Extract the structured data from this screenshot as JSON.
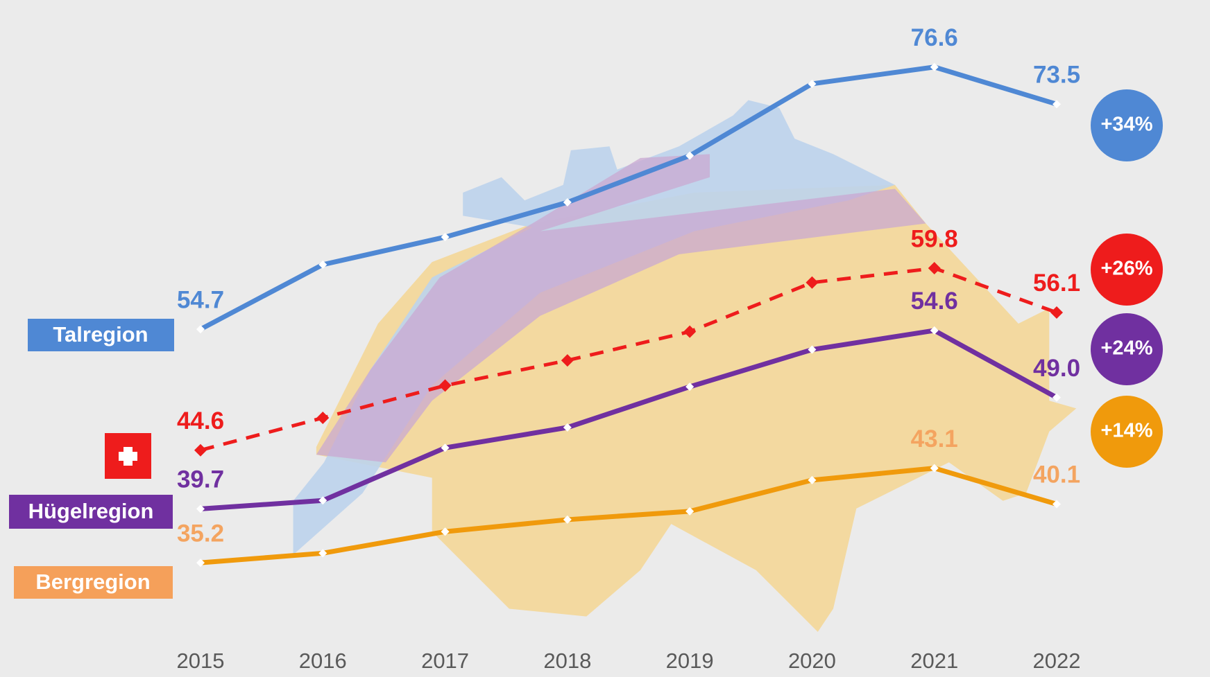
{
  "chart_data": {
    "type": "line",
    "categories": [
      "2015",
      "2016",
      "2017",
      "2018",
      "2019",
      "2020",
      "2021",
      "2022"
    ],
    "ylim": [
      30,
      80
    ],
    "series": [
      {
        "name": "Talregion",
        "color": "#4f88d4",
        "label_color": "#4f88d4",
        "dashed": false,
        "change": "+34%",
        "values": [
          54.7,
          60.1,
          62.4,
          65.3,
          69.2,
          75.2,
          76.6,
          73.5
        ],
        "value_labels": [
          "54.7",
          null,
          null,
          null,
          null,
          null,
          "76.6",
          "73.5"
        ]
      },
      {
        "color": "#ee1c1c",
        "label_color": "#ee1c1c",
        "dashed": true,
        "change": "+26%",
        "values": [
          44.6,
          47.3,
          50.0,
          52.1,
          54.5,
          58.6,
          59.8,
          56.1
        ],
        "value_labels": [
          "44.6",
          null,
          null,
          null,
          null,
          null,
          "59.8",
          "56.1"
        ]
      },
      {
        "name": "Hügelregion",
        "color": "#7030a0",
        "label_color": "#7030a0",
        "dashed": false,
        "change": "+24%",
        "values": [
          39.7,
          40.4,
          44.8,
          46.5,
          49.9,
          53.0,
          54.6,
          49.0
        ],
        "value_labels": [
          "39.7",
          null,
          null,
          null,
          null,
          null,
          "54.6",
          "49.0"
        ]
      },
      {
        "name": "Bergregion",
        "color": "#f09a0c",
        "label_color": "#f4a460",
        "dashed": false,
        "change": "+14%",
        "values": [
          35.2,
          36.0,
          37.8,
          38.8,
          39.5,
          42.1,
          43.1,
          40.1
        ],
        "value_labels": [
          "35.2",
          null,
          null,
          null,
          null,
          null,
          "43.1",
          "40.1"
        ]
      }
    ]
  }
}
